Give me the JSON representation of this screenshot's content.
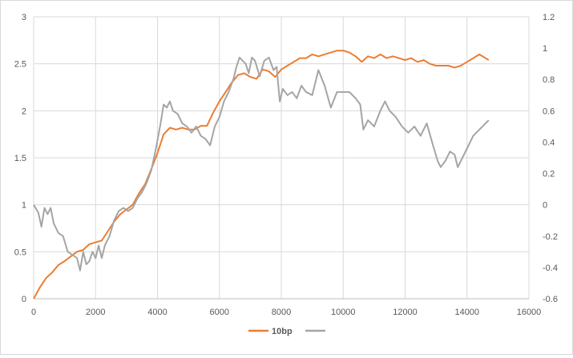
{
  "chart_data": {
    "type": "line",
    "title": "",
    "xlabel": "",
    "ylabel": "",
    "y2label": "",
    "xlim": [
      0,
      16000
    ],
    "ylim": [
      0,
      3
    ],
    "y2lim": [
      -0.6,
      1.2
    ],
    "x_ticks": [
      "0",
      "2000",
      "4000",
      "6000",
      "8000",
      "10000",
      "12000",
      "14000",
      "16000"
    ],
    "y_ticks": [
      "0",
      "0.5",
      "1",
      "1.5",
      "2",
      "2.5",
      "3"
    ],
    "y2_ticks": [
      "-0.6",
      "-0.4",
      "-0.2",
      "0",
      "0.2",
      "0.4",
      "0.6",
      "0.8",
      "1",
      "1.2"
    ],
    "grid": true,
    "legend_position": "bottom",
    "series": [
      {
        "name": "10bp",
        "axis": "left",
        "color": "#ED7D31",
        "x": [
          0,
          200,
          400,
          600,
          800,
          1000,
          1200,
          1400,
          1600,
          1800,
          2000,
          2200,
          2400,
          2600,
          2800,
          3000,
          3200,
          3400,
          3600,
          3800,
          4000,
          4200,
          4400,
          4600,
          4800,
          5000,
          5200,
          5400,
          5600,
          5800,
          6000,
          6200,
          6400,
          6600,
          6800,
          7000,
          7200,
          7400,
          7600,
          7800,
          8000,
          8200,
          8400,
          8600,
          8800,
          9000,
          9200,
          9400,
          9600,
          9800,
          10000,
          10200,
          10400,
          10600,
          10800,
          11000,
          11200,
          11400,
          11600,
          11800,
          12000,
          12200,
          12400,
          12600,
          12800,
          13000,
          13200,
          13400,
          13600,
          13800,
          14000,
          14200,
          14400,
          14600,
          14700
        ],
        "values": [
          0.0,
          0.12,
          0.22,
          0.28,
          0.36,
          0.4,
          0.45,
          0.5,
          0.52,
          0.58,
          0.6,
          0.62,
          0.72,
          0.82,
          0.9,
          0.95,
          1.0,
          1.12,
          1.22,
          1.38,
          1.55,
          1.75,
          1.82,
          1.8,
          1.82,
          1.8,
          1.8,
          1.84,
          1.84,
          1.98,
          2.1,
          2.2,
          2.3,
          2.38,
          2.4,
          2.36,
          2.34,
          2.44,
          2.42,
          2.36,
          2.44,
          2.48,
          2.52,
          2.56,
          2.56,
          2.6,
          2.58,
          2.6,
          2.62,
          2.64,
          2.64,
          2.62,
          2.58,
          2.52,
          2.58,
          2.56,
          2.6,
          2.56,
          2.58,
          2.56,
          2.54,
          2.56,
          2.52,
          2.54,
          2.5,
          2.48,
          2.48,
          2.48,
          2.46,
          2.48,
          2.52,
          2.56,
          2.6,
          2.56,
          2.54
        ]
      },
      {
        "name": "",
        "axis": "right",
        "color": "#A5A5A5",
        "x": [
          0,
          150,
          250,
          350,
          450,
          550,
          650,
          800,
          950,
          1100,
          1250,
          1400,
          1500,
          1600,
          1700,
          1800,
          1900,
          2000,
          2100,
          2200,
          2300,
          2450,
          2600,
          2750,
          2900,
          3050,
          3200,
          3350,
          3500,
          3650,
          3800,
          3950,
          4100,
          4200,
          4300,
          4400,
          4500,
          4650,
          4800,
          4950,
          5100,
          5250,
          5400,
          5550,
          5700,
          5850,
          6000,
          6150,
          6300,
          6450,
          6550,
          6650,
          6750,
          6850,
          6950,
          7050,
          7150,
          7300,
          7450,
          7600,
          7750,
          7850,
          7950,
          8050,
          8200,
          8350,
          8500,
          8650,
          8800,
          9000,
          9200,
          9400,
          9600,
          9800,
          10000,
          10200,
          10400,
          10550,
          10650,
          10800,
          11000,
          11200,
          11350,
          11500,
          11700,
          11900,
          12100,
          12300,
          12500,
          12700,
          12900,
          13050,
          13150,
          13300,
          13450,
          13600,
          13700,
          13850,
          14000,
          14200,
          14400,
          14600,
          14700
        ],
        "values": [
          0.0,
          -0.05,
          -0.14,
          -0.02,
          -0.06,
          -0.02,
          -0.12,
          -0.18,
          -0.2,
          -0.3,
          -0.32,
          -0.34,
          -0.42,
          -0.3,
          -0.38,
          -0.36,
          -0.3,
          -0.34,
          -0.26,
          -0.34,
          -0.26,
          -0.2,
          -0.1,
          -0.04,
          -0.02,
          -0.04,
          -0.02,
          0.04,
          0.08,
          0.14,
          0.22,
          0.36,
          0.52,
          0.64,
          0.62,
          0.66,
          0.6,
          0.58,
          0.52,
          0.5,
          0.46,
          0.5,
          0.44,
          0.42,
          0.38,
          0.5,
          0.56,
          0.66,
          0.72,
          0.8,
          0.88,
          0.94,
          0.92,
          0.9,
          0.84,
          0.94,
          0.92,
          0.82,
          0.92,
          0.94,
          0.86,
          0.88,
          0.66,
          0.74,
          0.7,
          0.72,
          0.68,
          0.76,
          0.72,
          0.7,
          0.86,
          0.76,
          0.62,
          0.72,
          0.72,
          0.72,
          0.68,
          0.64,
          0.48,
          0.54,
          0.5,
          0.6,
          0.66,
          0.6,
          0.56,
          0.5,
          0.46,
          0.5,
          0.44,
          0.52,
          0.38,
          0.28,
          0.24,
          0.28,
          0.34,
          0.32,
          0.24,
          0.3,
          0.36,
          0.44,
          0.48,
          0.52,
          0.54
        ]
      }
    ]
  }
}
